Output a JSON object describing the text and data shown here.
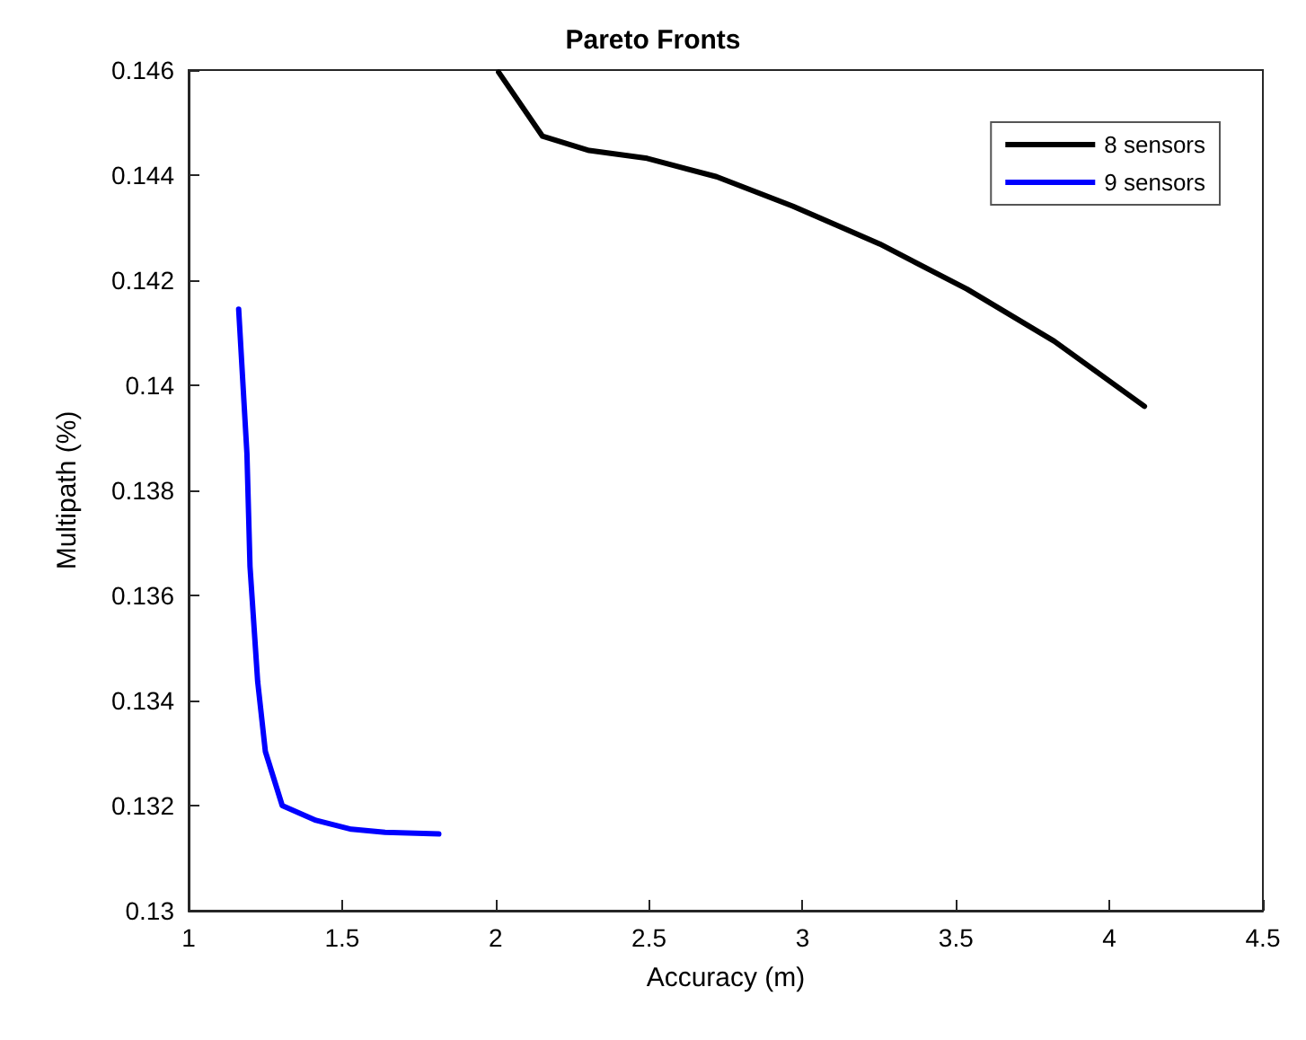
{
  "chart_data": {
    "type": "line",
    "title": "Pareto Fronts",
    "xlabel": "Accuracy (m)",
    "ylabel": "Multipath (%)",
    "xlim": [
      1,
      4.5
    ],
    "xticks": [
      1,
      1.5,
      2,
      2.5,
      3,
      3.5,
      4,
      4.5
    ],
    "ylim": [
      0.13,
      0.146
    ],
    "yticks": [
      0.13,
      0.132,
      0.134,
      0.136,
      0.138,
      0.14,
      0.142,
      0.144,
      0.146
    ],
    "grid": false,
    "legend": "top right",
    "marker": "none",
    "line_style": "solid",
    "series": [
      {
        "name": "8 sensors",
        "color": "#000000",
        "x": [
          2.01,
          2.153,
          2.305,
          2.494,
          2.72,
          2.968,
          3.252,
          3.536,
          3.82,
          4.114
        ],
        "values": [
          0.14596,
          0.14474,
          0.14447,
          0.14432,
          0.14397,
          0.14341,
          0.14269,
          0.14183,
          0.14084,
          0.1396
        ]
      },
      {
        "name": "9 sensors",
        "color": "#0000ff",
        "x": [
          1.163,
          1.19,
          1.2,
          1.225,
          1.25,
          1.305,
          1.415,
          1.53,
          1.64,
          1.815
        ],
        "values": [
          0.14145,
          0.1387,
          0.13655,
          0.13436,
          0.13303,
          0.132,
          0.13172,
          0.13155,
          0.13149,
          0.13146
        ]
      }
    ]
  }
}
